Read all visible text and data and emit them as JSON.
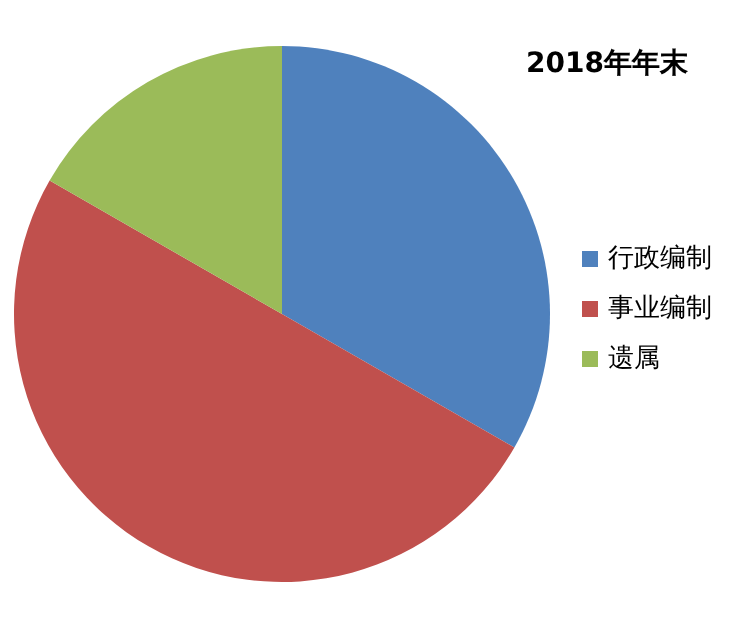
{
  "chart_data": {
    "type": "pie",
    "title": "2018年年末",
    "categories": [
      "行政编制",
      "事业编制",
      "遗属"
    ],
    "values": [
      33.3,
      50,
      16.7
    ],
    "colors": [
      "#4f81bd",
      "#c0504d",
      "#9bbb59"
    ],
    "legend": "right"
  }
}
